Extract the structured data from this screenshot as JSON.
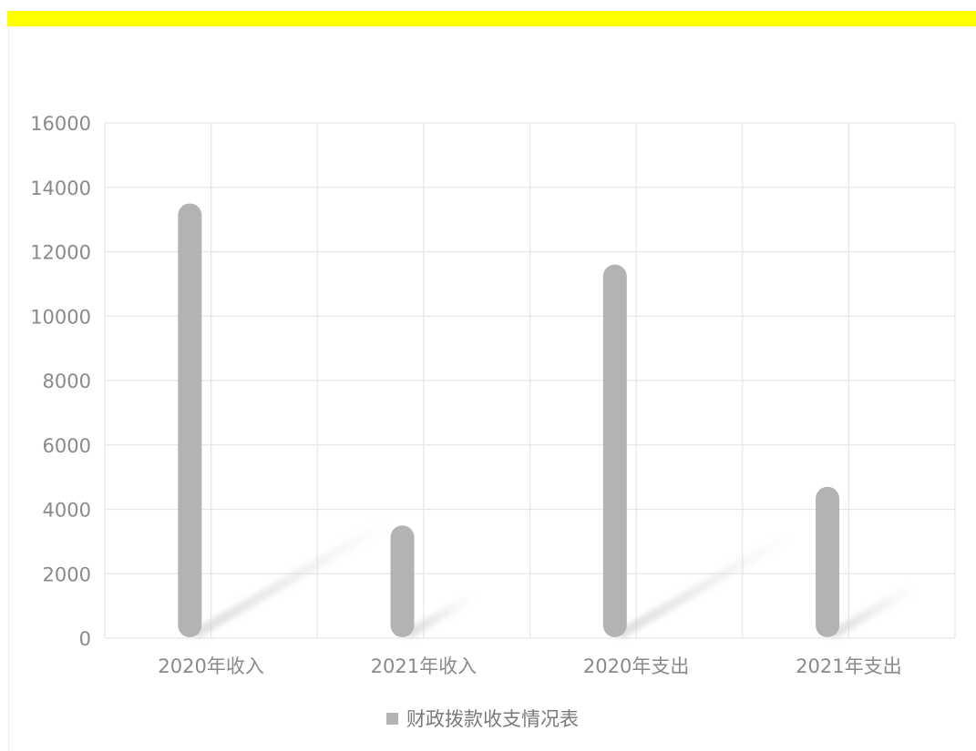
{
  "chart_data": {
    "type": "bar",
    "categories": [
      "2020年收入",
      "2021年收入",
      "2020年支出",
      "2021年支出"
    ],
    "series": [
      {
        "name": "财政拨款收支情况表",
        "values": [
          13500,
          3500,
          11600,
          4700
        ],
        "color": "#b3b3b3"
      }
    ],
    "ylim": [
      0,
      16000
    ],
    "yticks": [
      0,
      2000,
      4000,
      6000,
      8000,
      10000,
      12000,
      14000,
      16000
    ],
    "grid": true,
    "legend_position": "bottom-center",
    "title": "",
    "xlabel": "",
    "ylabel": ""
  },
  "colors": {
    "top_bar": "#ffff00",
    "grid": "#e6e6e6",
    "bar": "#b3b3b3"
  }
}
